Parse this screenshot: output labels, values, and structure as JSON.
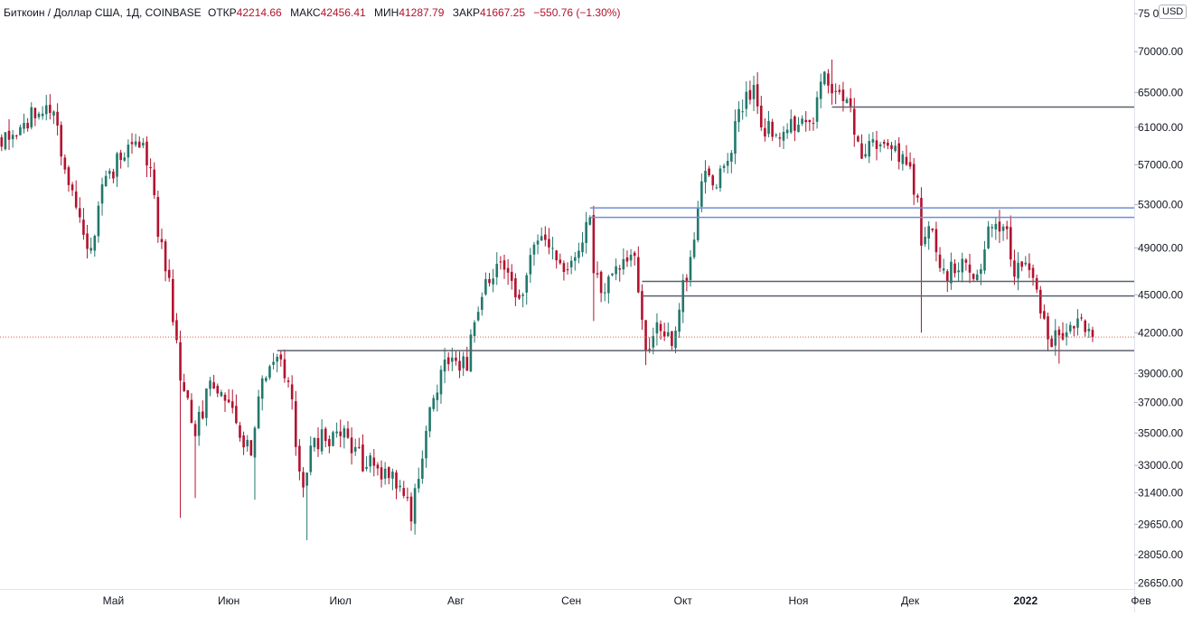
{
  "legend": {
    "symbol": "Биткоин / Доллар США, 1Д, COINBASE",
    "open_label": "ОТКР",
    "open": "42214.66",
    "high_label": "МАКС",
    "high": "42456.41",
    "low_label": "МИН",
    "low": "41287.79",
    "close_label": "ЗАКР",
    "close": "41667.25",
    "change": "−550.76 (−1.30%)"
  },
  "currency": "USD",
  "colors": {
    "up": "#22786c",
    "down": "#b2122e",
    "line_gray": "#5d606b",
    "line_blue": "#6d8fd4",
    "last_price": "#e55a3c"
  },
  "chart_data": {
    "type": "candlestick",
    "scale": "log",
    "x_range": [
      "2021-04-01",
      "2022-02-10"
    ],
    "y_range": [
      26000,
      75500
    ],
    "price_ticks": [
      "75 000.00",
      "70000.00",
      "65000.00",
      "61000.00",
      "57000.00",
      "53000.00",
      "49000.00",
      "45000.00",
      "42000.00",
      "39000.00",
      "37000.00",
      "35000.00",
      "33000.00",
      "31400.00",
      "29650.00",
      "28050.00",
      "26650.00"
    ],
    "month_ticks": [
      {
        "date": "2021-05-01",
        "label": "Май",
        "bold": false
      },
      {
        "date": "2021-06-01",
        "label": "Июн",
        "bold": false
      },
      {
        "date": "2021-07-01",
        "label": "Июл",
        "bold": false
      },
      {
        "date": "2021-08-01",
        "label": "Авг",
        "bold": false
      },
      {
        "date": "2021-09-01",
        "label": "Сен",
        "bold": false
      },
      {
        "date": "2021-10-01",
        "label": "Окт",
        "bold": false
      },
      {
        "date": "2021-11-01",
        "label": "Ноя",
        "bold": false
      },
      {
        "date": "2021-12-01",
        "label": "Дек",
        "bold": false
      },
      {
        "date": "2022-01-01",
        "label": "2022",
        "bold": true
      },
      {
        "date": "2022-02-01",
        "label": "Фев",
        "bold": false
      }
    ],
    "last_price": 41667.25,
    "horizontal_lines": [
      {
        "start": "2021-06-14",
        "price": 40650,
        "color": "gray"
      },
      {
        "start": "2021-09-06",
        "price": 52700,
        "color": "blue"
      },
      {
        "start": "2021-09-06",
        "price": 51800,
        "color": "blue"
      },
      {
        "start": "2021-09-20",
        "price": 46100,
        "color": "gray"
      },
      {
        "start": "2021-09-20",
        "price": 44900,
        "color": "gray"
      },
      {
        "start": "2021-11-10",
        "price": 63300,
        "color": "gray"
      }
    ],
    "closes": [
      {
        "date": "2021-04-01",
        "close": 58900
      },
      {
        "date": "2021-04-13",
        "close": 63500
      },
      {
        "date": "2021-04-16",
        "close": 61200
      },
      {
        "date": "2021-04-18",
        "close": 56500
      },
      {
        "date": "2021-04-22",
        "close": 51800
      },
      {
        "date": "2021-04-25",
        "close": 49000
      },
      {
        "date": "2021-04-28",
        "close": 55000
      },
      {
        "date": "2021-05-03",
        "close": 57500
      },
      {
        "date": "2021-05-08",
        "close": 58800
      },
      {
        "date": "2021-05-11",
        "close": 56700
      },
      {
        "date": "2021-05-13",
        "close": 50000
      },
      {
        "date": "2021-05-16",
        "close": 46400
      },
      {
        "date": "2021-05-19",
        "close": 38500
      },
      {
        "date": "2021-05-21",
        "close": 37300
      },
      {
        "date": "2021-05-23",
        "close": 34800
      },
      {
        "date": "2021-05-27",
        "close": 38500
      },
      {
        "date": "2021-06-01",
        "close": 37000
      },
      {
        "date": "2021-06-07",
        "close": 33600
      },
      {
        "date": "2021-06-09",
        "close": 37400
      },
      {
        "date": "2021-06-14",
        "close": 40200
      },
      {
        "date": "2021-06-17",
        "close": 38400
      },
      {
        "date": "2021-06-21",
        "close": 31700
      },
      {
        "date": "2021-06-24",
        "close": 34700
      },
      {
        "date": "2021-06-27",
        "close": 34500
      },
      {
        "date": "2021-07-03",
        "close": 34700
      },
      {
        "date": "2021-07-08",
        "close": 32900
      },
      {
        "date": "2021-07-13",
        "close": 32800
      },
      {
        "date": "2021-07-17",
        "close": 31800
      },
      {
        "date": "2021-07-20",
        "close": 29800
      },
      {
        "date": "2021-07-22",
        "close": 32200
      },
      {
        "date": "2021-07-26",
        "close": 37300
      },
      {
        "date": "2021-07-29",
        "close": 40000
      },
      {
        "date": "2021-08-01",
        "close": 39900
      },
      {
        "date": "2021-08-04",
        "close": 39200
      },
      {
        "date": "2021-08-06",
        "close": 42800
      },
      {
        "date": "2021-08-09",
        "close": 46300
      },
      {
        "date": "2021-08-14",
        "close": 47100
      },
      {
        "date": "2021-08-18",
        "close": 44700
      },
      {
        "date": "2021-08-22",
        "close": 49300
      },
      {
        "date": "2021-08-27",
        "close": 49000
      },
      {
        "date": "2021-08-31",
        "close": 47100
      },
      {
        "date": "2021-09-06",
        "close": 51800
      },
      {
        "date": "2021-09-07",
        "close": 46800
      },
      {
        "date": "2021-09-10",
        "close": 45200
      },
      {
        "date": "2021-09-14",
        "close": 47100
      },
      {
        "date": "2021-09-16",
        "close": 47800
      },
      {
        "date": "2021-09-18",
        "close": 48300
      },
      {
        "date": "2021-09-20",
        "close": 43000
      },
      {
        "date": "2021-09-21",
        "close": 40700
      },
      {
        "date": "2021-09-24",
        "close": 42800
      },
      {
        "date": "2021-09-28",
        "close": 41000
      },
      {
        "date": "2021-09-30",
        "close": 43800
      },
      {
        "date": "2021-10-03",
        "close": 48200
      },
      {
        "date": "2021-10-06",
        "close": 55300
      },
      {
        "date": "2021-10-10",
        "close": 54700
      },
      {
        "date": "2021-10-13",
        "close": 57400
      },
      {
        "date": "2021-10-15",
        "close": 61700
      },
      {
        "date": "2021-10-20",
        "close": 65900
      },
      {
        "date": "2021-10-22",
        "close": 61000
      },
      {
        "date": "2021-10-26",
        "close": 60200
      },
      {
        "date": "2021-10-28",
        "close": 60500
      },
      {
        "date": "2021-11-01",
        "close": 61300
      },
      {
        "date": "2021-11-05",
        "close": 61400
      },
      {
        "date": "2021-11-08",
        "close": 67500
      },
      {
        "date": "2021-11-10",
        "close": 64900
      },
      {
        "date": "2021-11-14",
        "close": 64200
      },
      {
        "date": "2021-11-16",
        "close": 60200
      },
      {
        "date": "2021-11-19",
        "close": 58100
      },
      {
        "date": "2021-11-21",
        "close": 59700
      },
      {
        "date": "2021-11-25",
        "close": 59000
      },
      {
        "date": "2021-11-28",
        "close": 57300
      },
      {
        "date": "2021-11-30",
        "close": 57000
      },
      {
        "date": "2021-12-03",
        "close": 53700
      },
      {
        "date": "2021-12-04",
        "close": 49200
      },
      {
        "date": "2021-12-07",
        "close": 50600
      },
      {
        "date": "2021-12-10",
        "close": 47200
      },
      {
        "date": "2021-12-13",
        "close": 46800
      },
      {
        "date": "2021-12-16",
        "close": 47700
      },
      {
        "date": "2021-12-19",
        "close": 46700
      },
      {
        "date": "2021-12-23",
        "close": 50900
      },
      {
        "date": "2021-12-27",
        "close": 50700
      },
      {
        "date": "2021-12-29",
        "close": 46500
      },
      {
        "date": "2022-01-01",
        "close": 47700
      },
      {
        "date": "2022-01-03",
        "close": 46400
      },
      {
        "date": "2022-01-05",
        "close": 43500
      },
      {
        "date": "2022-01-07",
        "close": 41500
      },
      {
        "date": "2022-01-10",
        "close": 41800
      },
      {
        "date": "2022-01-13",
        "close": 42600
      },
      {
        "date": "2022-01-15",
        "close": 43100
      },
      {
        "date": "2022-01-16",
        "close": 43100
      },
      {
        "date": "2022-01-18",
        "close": 42300
      },
      {
        "date": "2022-01-19",
        "close": 41667
      }
    ]
  }
}
